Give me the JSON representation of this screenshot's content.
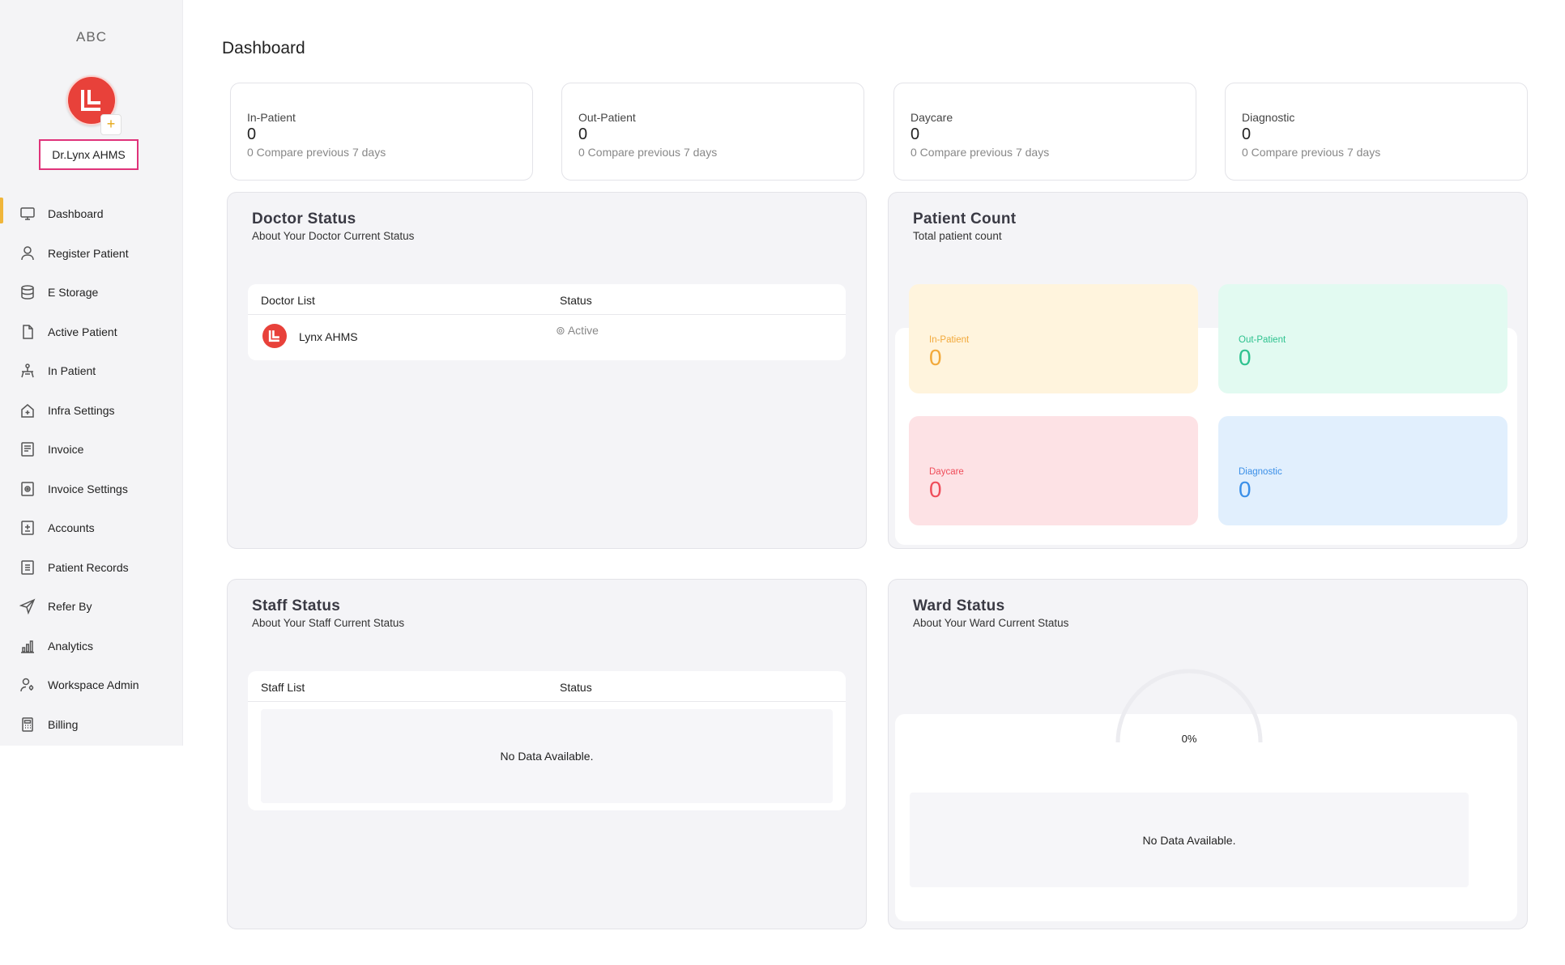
{
  "sidebar": {
    "brand": "ABC",
    "profile_name": "Dr.Lynx AHMS",
    "add_icon": "+",
    "items": [
      {
        "label": "Dashboard",
        "icon": "monitor-icon"
      },
      {
        "label": "Register Patient",
        "icon": "user-icon"
      },
      {
        "label": "E Storage",
        "icon": "database-icon"
      },
      {
        "label": "Active Patient",
        "icon": "file-icon"
      },
      {
        "label": "In Patient",
        "icon": "bed-icon"
      },
      {
        "label": "Infra Settings",
        "icon": "home-plus-icon"
      },
      {
        "label": "Invoice",
        "icon": "invoice-icon"
      },
      {
        "label": "Invoice Settings",
        "icon": "invoice-settings-icon"
      },
      {
        "label": "Accounts",
        "icon": "accounts-icon"
      },
      {
        "label": "Patient Records",
        "icon": "records-icon"
      },
      {
        "label": "Refer By",
        "icon": "send-icon"
      },
      {
        "label": "Analytics",
        "icon": "analytics-icon"
      },
      {
        "label": "Workspace Admin",
        "icon": "admin-icon"
      },
      {
        "label": "Billing",
        "icon": "calculator-icon"
      }
    ]
  },
  "main": {
    "title": "Dashboard",
    "stats": [
      {
        "label": "In-Patient",
        "value": "0",
        "compare": "0 Compare previous 7 days"
      },
      {
        "label": "Out-Patient",
        "value": "0",
        "compare": "0 Compare previous 7 days"
      },
      {
        "label": "Daycare",
        "value": "0",
        "compare": "0 Compare previous 7 days"
      },
      {
        "label": "Diagnostic",
        "value": "0",
        "compare": "0 Compare previous 7 days"
      }
    ],
    "doctor_status": {
      "title": "Doctor Status",
      "subtitle": "About Your Doctor Current Status",
      "col_list": "Doctor List",
      "col_status": "Status",
      "rows": [
        {
          "name": "Lynx AHMS",
          "status": "⊚ Active"
        }
      ]
    },
    "patient_count": {
      "title": "Patient Count",
      "subtitle": "Total patient count",
      "tiles": [
        {
          "label": "In-Patient",
          "value": "0",
          "bg": "#fff4dd",
          "color": "#f2a93b"
        },
        {
          "label": "Out-Patient",
          "value": "0",
          "bg": "#e2faf1",
          "color": "#2ec28f"
        },
        {
          "label": "Daycare",
          "value": "0",
          "bg": "#fde2e5",
          "color": "#ef4d5a"
        },
        {
          "label": "Diagnostic",
          "value": "0",
          "bg": "#e1effd",
          "color": "#3a8fe8"
        }
      ]
    },
    "staff_status": {
      "title": "Staff Status",
      "subtitle": "About Your Staff Current Status",
      "col_list": "Staff List",
      "col_status": "Status",
      "no_data": "No Data Available."
    },
    "ward_status": {
      "title": "Ward Status",
      "subtitle": "About Your Ward Current Status",
      "gauge_percent": "0%",
      "no_data": "No Data Available."
    }
  }
}
